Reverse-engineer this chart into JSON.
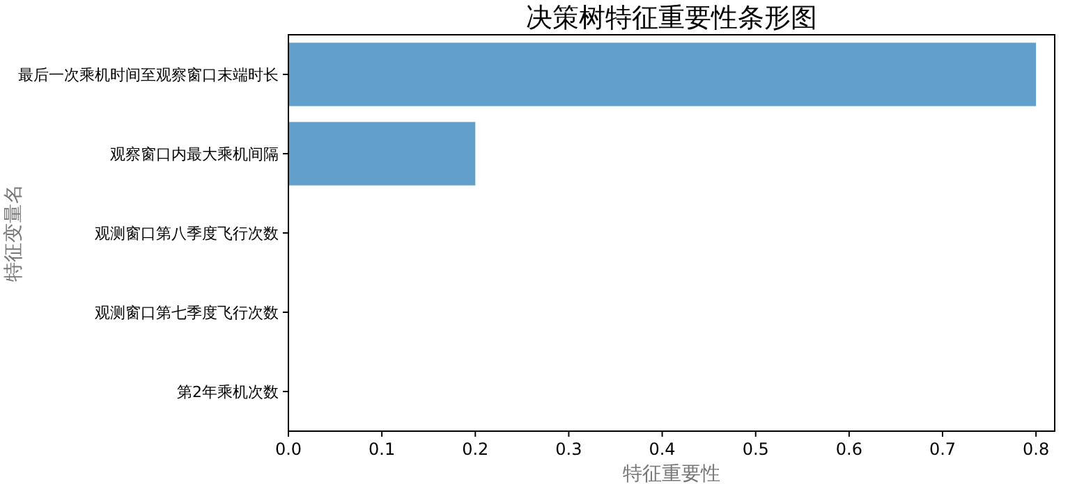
{
  "chart_data": {
    "type": "bar",
    "orientation": "horizontal",
    "title": "决策树特征重要性条形图",
    "xlabel": "特征重要性",
    "ylabel": "特征变量名",
    "categories": [
      "最后一次乘机时间至观察窗口末端时长",
      "观察窗口内最大乘机间隔",
      "观测窗口第八季度飞行次数",
      "观测窗口第七季度飞行次数",
      "第2年乘机次数"
    ],
    "values": [
      0.8,
      0.2,
      0,
      0,
      0
    ],
    "color": "#62a0cb",
    "xlim": [
      0,
      0.82
    ],
    "xticks": [
      {
        "value": 0,
        "label": "0.0"
      },
      0.1,
      0.2,
      0.3,
      0.4,
      0.5,
      0.6,
      0.7,
      0.8
    ],
    "grid": false
  }
}
